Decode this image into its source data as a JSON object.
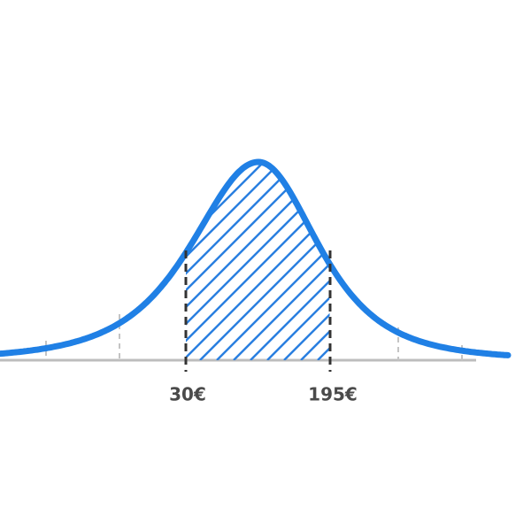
{
  "labels": [
    "30€",
    "195€"
  ]
}
